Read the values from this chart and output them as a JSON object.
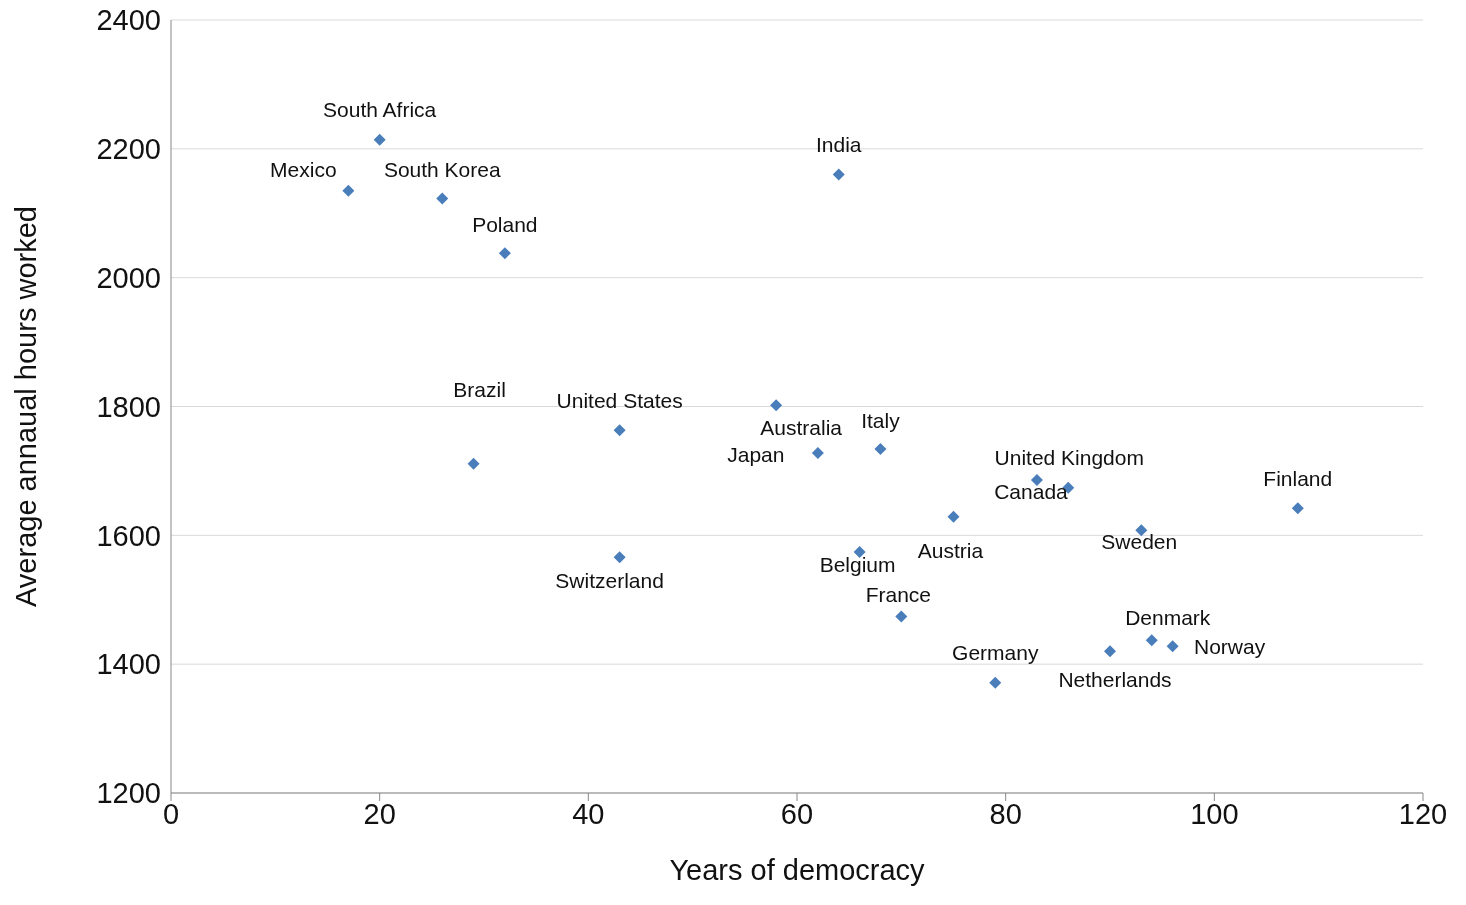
{
  "chart_data": {
    "type": "scatter",
    "xlabel": "Years of democracy",
    "ylabel": "Average annaual hours worked",
    "color": "#4a7ebb",
    "marker": "diamond",
    "grid": "y",
    "legend": false,
    "x": [
      20,
      17,
      26,
      32,
      64,
      29,
      43,
      43,
      58,
      62,
      68,
      66,
      70,
      75,
      79,
      83,
      86,
      93,
      108,
      94,
      96,
      90
    ],
    "values": [
      2214,
      2135,
      2123,
      2038,
      2160,
      1711,
      1763,
      1566,
      1802,
      1728,
      1734,
      1574,
      1474,
      1629,
      1371,
      1686,
      1674,
      1608,
      1642,
      1437,
      1428,
      1420
    ],
    "xlim": [
      0,
      120
    ],
    "xticks": [
      0,
      20,
      40,
      60,
      80,
      100,
      120
    ],
    "ylim": [
      1200,
      2400
    ],
    "yticks": [
      1200,
      1400,
      1600,
      1800,
      2000,
      2200,
      2400
    ],
    "annotations": [
      {
        "text": "South Africa",
        "x": 20,
        "y": 2214
      },
      {
        "text": "Mexico",
        "x": 17,
        "y": 2135
      },
      {
        "text": "South Korea",
        "x": 26,
        "y": 2123
      },
      {
        "text": "Poland",
        "x": 32,
        "y": 2038
      },
      {
        "text": "India",
        "x": 64,
        "y": 2160
      },
      {
        "text": "Brazil",
        "x": 29,
        "y": 1711
      },
      {
        "text": "United States",
        "x": 43,
        "y": 1763
      },
      {
        "text": "Switzerland",
        "x": 43,
        "y": 1566
      },
      {
        "text": "Australia",
        "x": 58,
        "y": 1802
      },
      {
        "text": "Japan",
        "x": 62,
        "y": 1728
      },
      {
        "text": "Italy",
        "x": 68,
        "y": 1734
      },
      {
        "text": "Belgium",
        "x": 66,
        "y": 1574
      },
      {
        "text": "France",
        "x": 70,
        "y": 1474
      },
      {
        "text": "Austria",
        "x": 75,
        "y": 1629
      },
      {
        "text": "Germany",
        "x": 79,
        "y": 1371
      },
      {
        "text": "Canada",
        "x": 83,
        "y": 1686
      },
      {
        "text": "United Kingdom",
        "x": 86,
        "y": 1674
      },
      {
        "text": "Sweden",
        "x": 93,
        "y": 1608
      },
      {
        "text": "Finland",
        "x": 108,
        "y": 1642
      },
      {
        "text": "Denmark",
        "x": 94,
        "y": 1437
      },
      {
        "text": "Norway",
        "x": 96,
        "y": 1428
      },
      {
        "text": "Netherlands",
        "x": 90,
        "y": 1420
      }
    ]
  }
}
